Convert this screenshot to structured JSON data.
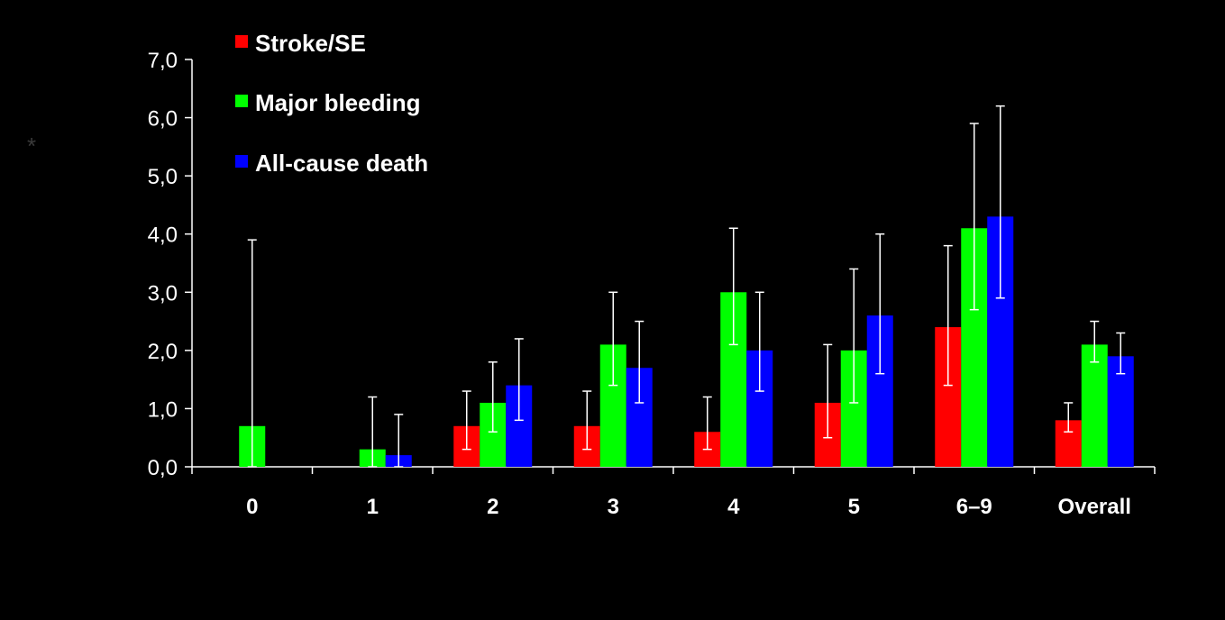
{
  "chart_data": {
    "type": "bar",
    "categories": [
      "0",
      "1",
      "2",
      "3",
      "4",
      "5",
      "6–9",
      "Overall"
    ],
    "series": [
      {
        "name": "Stroke/SE",
        "color": "#ff0000",
        "values": [
          0,
          0,
          0.7,
          0.7,
          0.6,
          1.1,
          2.4,
          0.8
        ],
        "ci_low": [
          null,
          null,
          0.3,
          0.3,
          0.3,
          0.5,
          1.4,
          0.6
        ],
        "ci_high": [
          null,
          null,
          1.3,
          1.3,
          1.2,
          2.1,
          3.8,
          1.1
        ]
      },
      {
        "name": "Major bleeding",
        "color": "#00ff00",
        "values": [
          0.7,
          0.3,
          1.1,
          2.1,
          3.0,
          2.0,
          4.1,
          2.1
        ],
        "ci_low": [
          0.0,
          0.0,
          0.6,
          1.4,
          2.1,
          1.1,
          2.7,
          1.8
        ],
        "ci_high": [
          3.9,
          1.2,
          1.8,
          3.0,
          4.1,
          3.4,
          5.9,
          2.5
        ]
      },
      {
        "name": "All-cause death",
        "color": "#0000ff",
        "values": [
          0,
          0.2,
          1.4,
          1.7,
          2.0,
          2.6,
          4.3,
          1.9
        ],
        "ci_low": [
          null,
          0.0,
          0.8,
          1.1,
          1.3,
          1.6,
          2.9,
          1.6
        ],
        "ci_high": [
          null,
          0.9,
          2.2,
          2.5,
          3.0,
          4.0,
          6.2,
          2.3
        ]
      }
    ],
    "ylim": [
      0,
      7
    ],
    "yticks": [
      "0,0",
      "1,0",
      "2,0",
      "3,0",
      "4,0",
      "5,0",
      "6,0",
      "7,0"
    ],
    "title": "",
    "xlabel": "",
    "ylabel": "*",
    "legend": "top-left",
    "grid": false
  }
}
